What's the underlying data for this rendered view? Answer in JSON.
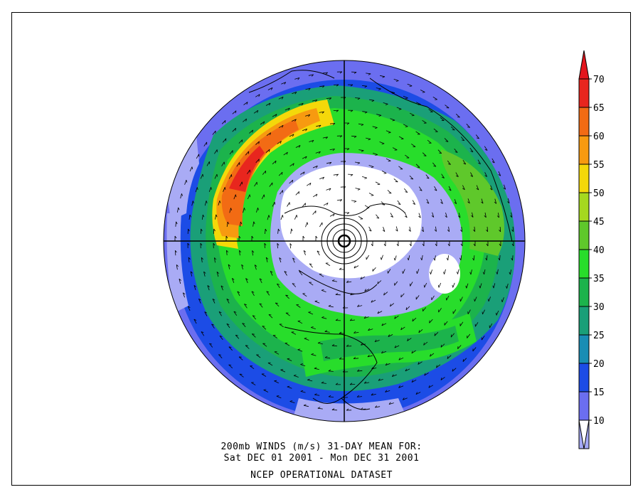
{
  "caption": {
    "line1": "200mb WINDS (m/s)   31-DAY MEAN FOR:",
    "line2": "Sat DEC 01 2001 - Mon DEC 31 2001",
    "line3": "NCEP OPERATIONAL DATASET"
  },
  "legend": {
    "levels": [
      {
        "value": "70",
        "color": "#e8261e"
      },
      {
        "value": "65",
        "color": "#f26b14"
      },
      {
        "value": "60",
        "color": "#f79a10"
      },
      {
        "value": "55",
        "color": "#f4d80a"
      },
      {
        "value": "50",
        "color": "#a5d81f"
      },
      {
        "value": "45",
        "color": "#5fc82b"
      },
      {
        "value": "40",
        "color": "#28dd2b"
      },
      {
        "value": "35",
        "color": "#1cb34c"
      },
      {
        "value": "30",
        "color": "#1a9f78"
      },
      {
        "value": "25",
        "color": "#198db4"
      },
      {
        "value": "20",
        "color": "#1c4ce6"
      },
      {
        "value": "15",
        "color": "#6b6ef0"
      },
      {
        "value": "10",
        "color": "#a4a8f5"
      }
    ],
    "top_color": "#e3151d",
    "bottom_color": "#ffffff"
  },
  "map": {
    "projection": "north-polar-stereographic",
    "ocean_colors": {
      "low": "#a9abf5",
      "mid": "#6b6ef0",
      "blue": "#1c4ce6",
      "teal": "#1a9f78",
      "green": "#1cb34c",
      "bright": "#28dd2b",
      "lime": "#5fc82b",
      "yellow": "#f4d80a",
      "orange": "#f79a10",
      "red": "#e8261e"
    }
  }
}
